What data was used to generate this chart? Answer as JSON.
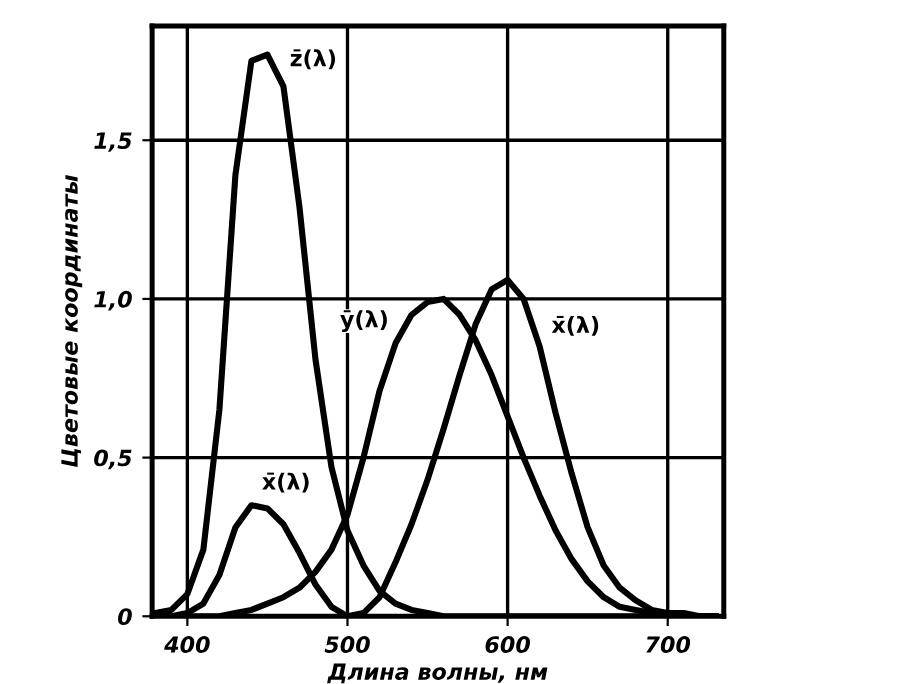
{
  "chart_data": {
    "type": "line",
    "xlabel": "Длина волны, нм",
    "ylabel": "Цветовые координаты",
    "x": [
      380,
      390,
      400,
      410,
      420,
      430,
      440,
      450,
      460,
      470,
      480,
      490,
      500,
      510,
      520,
      530,
      540,
      550,
      560,
      570,
      580,
      590,
      600,
      610,
      620,
      630,
      640,
      650,
      660,
      670,
      680,
      690,
      700,
      710,
      720,
      730
    ],
    "series": [
      {
        "color": "#000000",
        "values": [
          0.0,
          0.0,
          0.01,
          0.04,
          0.13,
          0.28,
          0.35,
          0.34,
          0.29,
          0.2,
          0.1,
          0.03,
          0.0,
          0.01,
          0.06,
          0.17,
          0.29,
          0.43,
          0.59,
          0.76,
          0.92,
          1.03,
          1.06,
          1.0,
          0.85,
          0.64,
          0.45,
          0.28,
          0.16,
          0.09,
          0.05,
          0.02,
          0.01,
          0.01,
          0.0,
          0.0
        ]
      },
      {
        "color": "#000000",
        "values": [
          0.0,
          0.0,
          0.0,
          0.0,
          0.0,
          0.01,
          0.02,
          0.04,
          0.06,
          0.09,
          0.14,
          0.21,
          0.32,
          0.5,
          0.71,
          0.86,
          0.95,
          0.99,
          1.0,
          0.95,
          0.87,
          0.76,
          0.63,
          0.5,
          0.38,
          0.27,
          0.18,
          0.11,
          0.06,
          0.03,
          0.02,
          0.01,
          0.0,
          0.0,
          0.0,
          0.0
        ]
      },
      {
        "color": "#000000",
        "values": [
          0.01,
          0.02,
          0.07,
          0.21,
          0.65,
          1.39,
          1.75,
          1.77,
          1.67,
          1.29,
          0.81,
          0.47,
          0.27,
          0.16,
          0.08,
          0.04,
          0.02,
          0.01,
          0.0,
          0.0,
          0.0,
          0.0,
          0.0,
          0.0,
          0.0,
          0.0,
          0.0,
          0.0,
          0.0,
          0.0,
          0.0,
          0.0,
          0.0,
          0.0,
          0.0,
          0.0
        ]
      }
    ],
    "annotations": [
      {
        "text": "z̄(λ)",
        "x": 450,
        "y": 1.77
      },
      {
        "text": "x̄(λ)",
        "x": 450,
        "y": 0.34
      },
      {
        "text": "ȳ(λ)",
        "x": 530,
        "y": 0.86
      },
      {
        "text": "x̄(λ)",
        "x": 610,
        "y": 1.0
      }
    ],
    "xlim": [
      378,
      735
    ],
    "ylim": [
      0,
      1.86
    ],
    "xticks": [
      400,
      500,
      600,
      700
    ],
    "yticks": [
      0,
      {
        "value": 0.5,
        "label": "0,5"
      },
      {
        "value": 1.0,
        "label": "1,0"
      },
      {
        "value": 1.5,
        "label": "1,5"
      }
    ],
    "grid": true,
    "legend": false,
    "marker": "none",
    "line_style": "solid"
  }
}
